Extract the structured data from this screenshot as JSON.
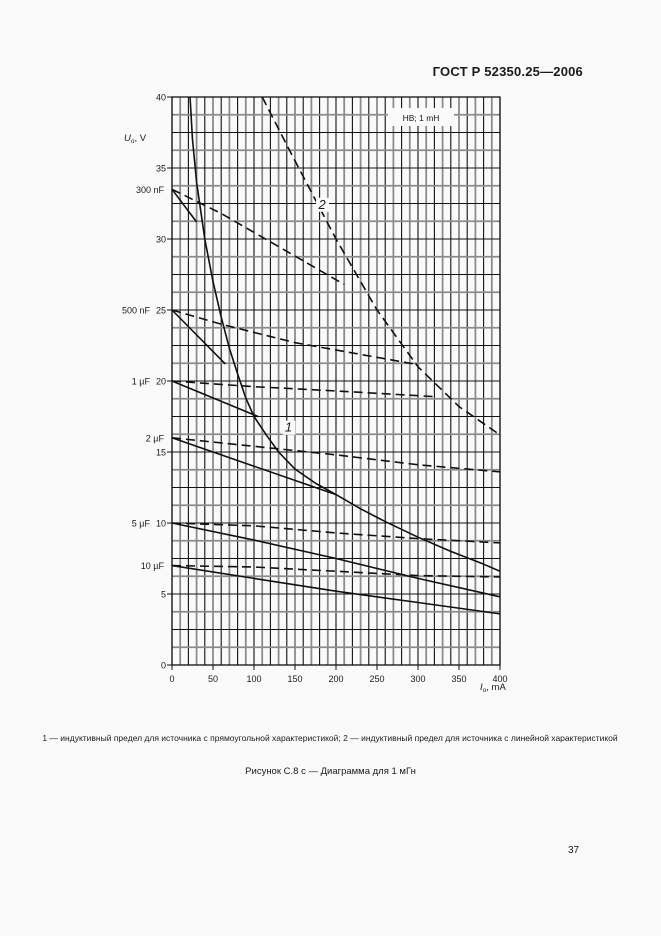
{
  "header": {
    "standard": "ГОСТ Р 52350.25—2006"
  },
  "chart_data": {
    "type": "line",
    "title": "HB; 1 mH",
    "xlabel": "I_o, mA",
    "ylabel": "U_o, V",
    "xlim": [
      0,
      400
    ],
    "ylim": [
      0,
      40
    ],
    "xticks": [
      0,
      50,
      100,
      150,
      200,
      250,
      300,
      350,
      400
    ],
    "yticks": [
      0,
      5,
      10,
      15,
      20,
      25,
      30,
      35,
      40
    ],
    "grid": true,
    "capacitance_labels": [
      {
        "label": "300 nF",
        "y": 33.5
      },
      {
        "label": "500 nF",
        "y": 25
      },
      {
        "label": "1 µF",
        "y": 20
      },
      {
        "label": "2 µF",
        "y": 16
      },
      {
        "label": "5 µF",
        "y": 10
      },
      {
        "label": "10 µF",
        "y": 7
      }
    ],
    "series": [
      {
        "name": "1 — inductive limit (rectangular source)",
        "style": "solid",
        "x": [
          22,
          25,
          30,
          40,
          50,
          60,
          70,
          80,
          90,
          100,
          115,
          130,
          150,
          175,
          200,
          230,
          260,
          300,
          340,
          380,
          400
        ],
        "y": [
          40,
          37,
          34,
          30,
          27,
          24.5,
          22.3,
          20.5,
          18.8,
          17.5,
          16.2,
          15,
          13.8,
          12.8,
          12.0,
          11.0,
          10.1,
          9.0,
          8.0,
          7.1,
          6.6
        ]
      },
      {
        "name": "2 — inductive limit (linear source)",
        "style": "dashed",
        "x": [
          110,
          150,
          200,
          250,
          300,
          350,
          400
        ],
        "y": [
          40,
          35.5,
          30.0,
          25.0,
          21.0,
          18.2,
          16.2
        ]
      },
      {
        "name": "300 nF dashed",
        "style": "dashed",
        "x": [
          0,
          60,
          120,
          210
        ],
        "y": [
          33.5,
          31.8,
          29.8,
          26.8
        ]
      },
      {
        "name": "300 nF solid",
        "style": "solid",
        "x": [
          0,
          30
        ],
        "y": [
          33.5,
          31.2
        ]
      },
      {
        "name": "500 nF dashed",
        "style": "dashed",
        "x": [
          0,
          60,
          150,
          295
        ],
        "y": [
          25,
          24,
          22.7,
          21.2
        ]
      },
      {
        "name": "500 nF solid",
        "style": "solid",
        "x": [
          0,
          65
        ],
        "y": [
          25,
          21.2
        ]
      },
      {
        "name": "1 µF dashed",
        "style": "dashed",
        "x": [
          0,
          100,
          200,
          320
        ],
        "y": [
          20,
          19.6,
          19.3,
          18.9
        ]
      },
      {
        "name": "1 µF solid",
        "style": "solid",
        "x": [
          0,
          105
        ],
        "y": [
          20,
          17.5
        ]
      },
      {
        "name": "2 µF dashed",
        "style": "dashed",
        "x": [
          0,
          100,
          200,
          300,
          400
        ],
        "y": [
          16,
          15.4,
          14.8,
          14.1,
          13.6
        ]
      },
      {
        "name": "2 µF solid",
        "style": "solid",
        "x": [
          0,
          100,
          200
        ],
        "y": [
          16,
          14.0,
          12.0
        ]
      },
      {
        "name": "5 µF dashed",
        "style": "dashed",
        "x": [
          0,
          100,
          200,
          300,
          400
        ],
        "y": [
          10,
          9.8,
          9.3,
          8.9,
          8.6
        ]
      },
      {
        "name": "5 µF solid",
        "style": "solid",
        "x": [
          0,
          100,
          200,
          300,
          400
        ],
        "y": [
          10,
          8.8,
          7.5,
          6.1,
          4.8
        ]
      },
      {
        "name": "10 µF dashed",
        "style": "dashed",
        "x": [
          0,
          100,
          200,
          300,
          400
        ],
        "y": [
          7,
          6.9,
          6.6,
          6.3,
          6.2
        ]
      },
      {
        "name": "10 µF solid",
        "style": "solid",
        "x": [
          0,
          100,
          200,
          300,
          400
        ],
        "y": [
          7,
          6.1,
          5.2,
          4.4,
          3.6
        ]
      }
    ],
    "annotations": [
      {
        "text": "1",
        "x": 142,
        "y": 16.5
      },
      {
        "text": "2",
        "x": 183,
        "y": 32.2
      }
    ]
  },
  "legend_note": "1 — индуктивный предел для источника с прямоугольной характеристикой; 2 — индуктивный предел для источника с линейной характеристикой",
  "caption": "Рисунок С.8 с — Диаграмма для 1 мГн",
  "page_number": "37",
  "labels": {
    "ylabel_main": "U",
    "ylabel_sub": "o",
    "ylabel_unit": ", V",
    "xlabel_main": "I",
    "xlabel_sub": "o",
    "xlabel_unit": ", mA",
    "inset": "HB; 1 mH"
  }
}
